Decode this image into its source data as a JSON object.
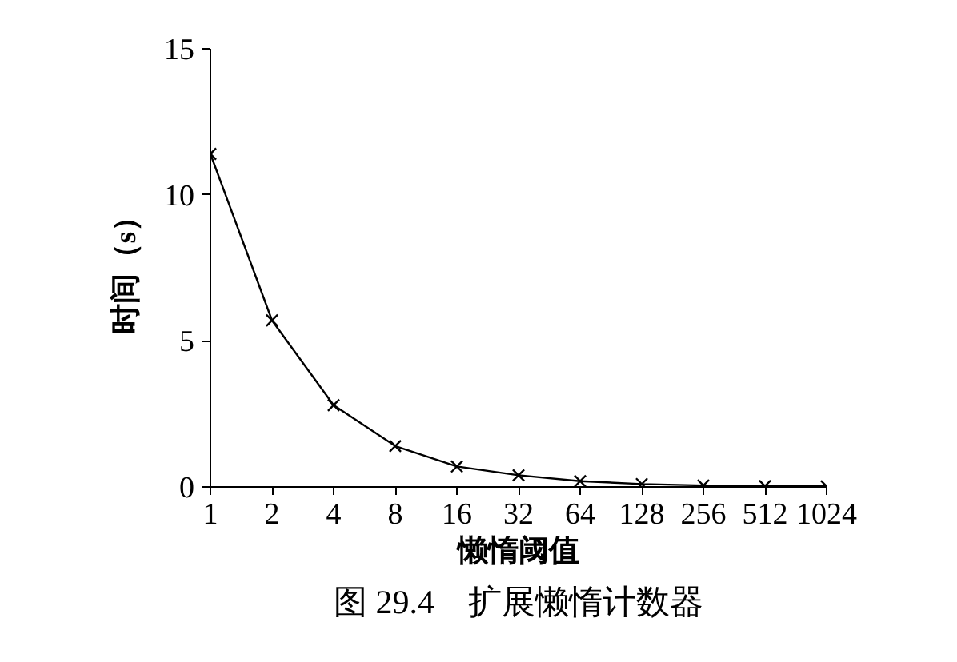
{
  "chart_data": {
    "type": "line",
    "title": "图 29.4　扩展懒惰计数器",
    "xlabel": "懒惰阈值",
    "ylabel": "时间（s）",
    "x": [
      1,
      2,
      4,
      8,
      16,
      32,
      64,
      128,
      256,
      512,
      1024
    ],
    "values": [
      11.4,
      5.7,
      2.8,
      1.4,
      0.7,
      0.4,
      0.2,
      0.1,
      0.05,
      0.03,
      0.02
    ],
    "color": "#000000",
    "marker": "cross",
    "line_style": "solid",
    "log": "x",
    "grid": false,
    "xlim": [
      1,
      1024
    ],
    "xticks": [
      1,
      2,
      4,
      8,
      16,
      32,
      64,
      128,
      256,
      512,
      1024
    ],
    "ylim": [
      0,
      15
    ],
    "yticks": [
      0,
      5,
      10,
      15
    ]
  }
}
